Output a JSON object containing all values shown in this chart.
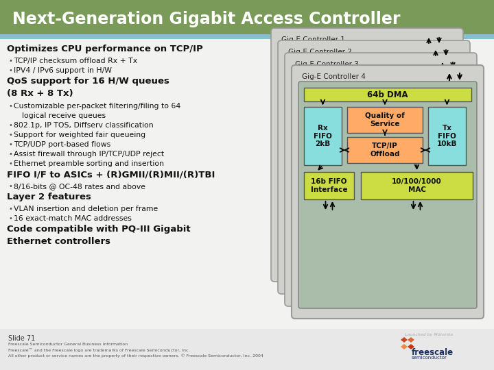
{
  "title": "Next-Generation Gigabit Access Controller",
  "title_bg": "#7a9a5a",
  "title_color": "#ffffff",
  "slide_bg": "#f0f0ee",
  "header_bar_color": "#88bfcc",
  "content_bg": "#f0f0ee",
  "footer_bg": "#e8e8e8",
  "left_text_blocks": [
    {
      "type": "header",
      "text": "Optimizes CPU performance on TCP/IP"
    },
    {
      "type": "bullet",
      "text": "TCP/IP checksum offload Rx + Tx"
    },
    {
      "type": "bullet",
      "text": "IPV4 / IPv6 support in H/W"
    },
    {
      "type": "header2",
      "text": "QoS support for 16 H/W queues\n(8 Rx + 8 Tx)"
    },
    {
      "type": "bullet",
      "text": "Customizable per-packet filtering/filing to 64"
    },
    {
      "type": "bullet2",
      "text": "logical receive queues"
    },
    {
      "type": "bullet",
      "text": "802.1p, IP TOS, Diffserv classification"
    },
    {
      "type": "bullet",
      "text": "Support for weighted fair queueing"
    },
    {
      "type": "bullet",
      "text": "TCP/UDP port-based flows"
    },
    {
      "type": "bullet",
      "text": "Assist firewall through IP/TCP/UDP reject"
    },
    {
      "type": "bullet",
      "text": "Ethernet preamble sorting and insertion"
    },
    {
      "type": "header",
      "text": "FIFO I/F to ASICs + (R)GMII/(R)MII/(R)TBI"
    },
    {
      "type": "bullet",
      "text": "8/16-bits @ OC-48 rates and above"
    },
    {
      "type": "header",
      "text": "Layer 2 features"
    },
    {
      "type": "bullet",
      "text": "VLAN insertion and deletion per frame"
    },
    {
      "type": "bullet",
      "text": "16 exact-match MAC addresses"
    },
    {
      "type": "header2",
      "text": "Code compatible with PQ-III Gigabit\nEthernet controllers"
    }
  ],
  "footer_text": "Slide 71",
  "footer_line1": "Freescale Semiconductor General Business Information",
  "footer_line2": "Freescale™ and the Freescale logo are trademarks of Freescale Semiconductor, Inc.",
  "footer_line3": "All other product or service names are the property of their respective owners. © Freescale Semiconductor, Inc. 2004",
  "dma_color": "#ccdd44",
  "rx_fifo_color": "#88dddd",
  "tx_fifo_color": "#88dddd",
  "qos_color": "#ffaa66",
  "tcpip_color": "#ffaa66",
  "mac_color": "#ccdd44",
  "fifo_if_color": "#ccdd44",
  "card_bg": "#c8c8c8",
  "inner_bg": "#aabcaa",
  "stacked_yellow": "#ccdd44",
  "stacked_cyan": "#88dddd"
}
